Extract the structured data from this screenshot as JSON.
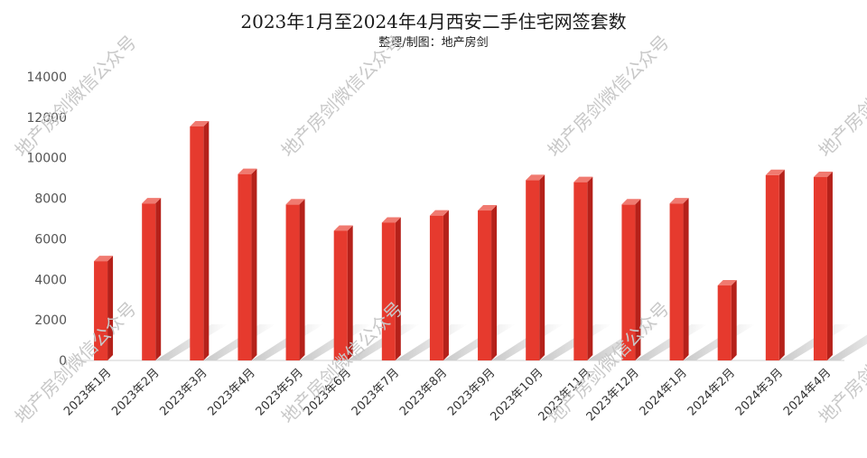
{
  "chart_data": {
    "type": "bar",
    "title": "2023年1月至2024年4月西安二手住宅网签套数",
    "subtitle": "整理/制图：地产房剑",
    "categories": [
      "2023年1月",
      "2023年2月",
      "2023年3月",
      "2023年4月",
      "2023年5月",
      "2023年6月",
      "2023年7月",
      "2023年8月",
      "2023年9月",
      "2023年10月",
      "2023年11月",
      "2023年12月",
      "2024年1月",
      "2024年2月",
      "2024年3月",
      "2024年4月"
    ],
    "values": [
      4900,
      7750,
      11550,
      9200,
      7700,
      6400,
      6800,
      7150,
      7400,
      8900,
      8800,
      7700,
      7750,
      3700,
      9150,
      9050
    ],
    "ylim": [
      0,
      14000
    ],
    "yticks": [
      0,
      2000,
      4000,
      6000,
      8000,
      10000,
      12000,
      14000
    ],
    "grid": false,
    "legend": "none",
    "bar_color": "#e63a2e",
    "bar_side_color": "#b5211a",
    "bar_top_color": "#f07a70"
  },
  "watermark": {
    "text": "地产房剑微信公众号"
  }
}
